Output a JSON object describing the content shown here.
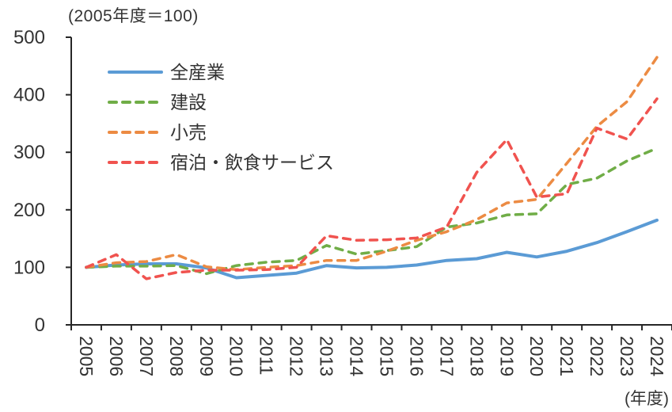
{
  "chart_data": {
    "type": "line",
    "title": "(2005年度＝100)",
    "x_unit_label": "(年度)",
    "grid": false,
    "legend_position": "top-left-inside",
    "y_range": [
      0,
      500
    ],
    "y_ticks": [
      0,
      100,
      200,
      300,
      400,
      500
    ],
    "categories": [
      "2005",
      "2006",
      "2007",
      "2008",
      "2009",
      "2010",
      "2011",
      "2012",
      "2013",
      "2014",
      "2015",
      "2016",
      "2017",
      "2018",
      "2019",
      "2020",
      "2021",
      "2022",
      "2023",
      "2024"
    ],
    "series": [
      {
        "name": "全産業",
        "key": "all-industries",
        "color": "#5B9BD5",
        "line_style": "solid",
        "values": [
          100,
          104,
          106,
          106,
          99,
          82,
          86,
          90,
          103,
          99,
          100,
          104,
          112,
          115,
          126,
          118,
          128,
          143,
          162,
          182
        ]
      },
      {
        "name": "建設",
        "key": "construction",
        "color": "#70AD47",
        "line_style": "dashed",
        "values": [
          100,
          102,
          102,
          103,
          89,
          103,
          109,
          112,
          138,
          123,
          129,
          136,
          170,
          177,
          191,
          193,
          244,
          255,
          285,
          307
        ]
      },
      {
        "name": "小売",
        "key": "retail",
        "color": "#EC8B43",
        "line_style": "dashed",
        "values": [
          100,
          108,
          110,
          122,
          101,
          96,
          100,
          103,
          112,
          112,
          128,
          147,
          162,
          183,
          212,
          218,
          281,
          345,
          388,
          465
        ]
      },
      {
        "name": "宿泊・飲食サービス",
        "key": "hospitality-food-service",
        "color": "#F0534F",
        "line_style": "dashed",
        "values": [
          100,
          122,
          80,
          91,
          95,
          95,
          96,
          100,
          155,
          147,
          148,
          151,
          170,
          265,
          322,
          222,
          228,
          342,
          323,
          393
        ]
      }
    ],
    "axis_color": "#262626",
    "label_color": "#333333"
  }
}
